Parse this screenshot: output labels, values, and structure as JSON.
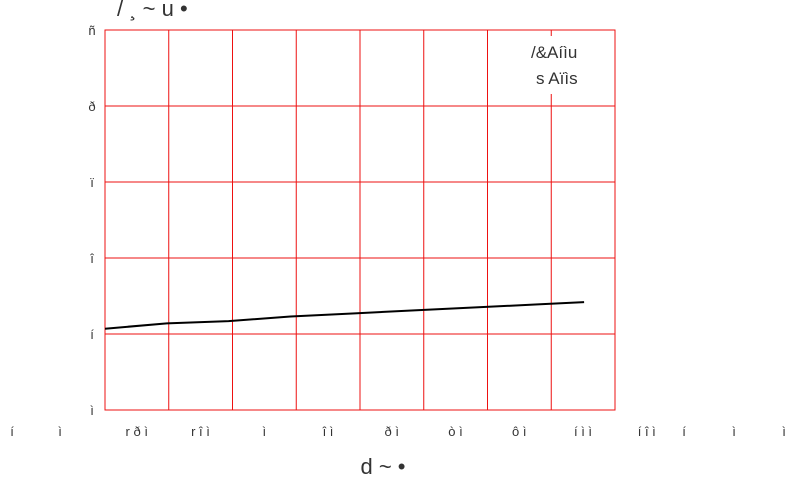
{
  "chart_data": {
    "type": "line",
    "ytitle": "/ ¸ ~ u  •",
    "xtitle": "d ~  •",
    "legend": [
      "/&Aíìu",
      "s Aïìs"
    ],
    "legend_position": "top-right",
    "grid": true,
    "colors": {
      "grid": "#ee1111",
      "line": "#000000",
      "text": "#333333"
    },
    "x_ticks": [
      "r ð ì",
      "r î ì",
      "ì",
      "î ì",
      "ð ì",
      "ò ì",
      "ô ì",
      "í ì ì",
      "í î ì"
    ],
    "x_edge_labels": [
      "í",
      "ì",
      "í",
      "ì",
      "ì"
    ],
    "y_ticks": [
      "ì",
      "í",
      "î",
      "ï",
      "ð",
      "ñ"
    ],
    "x": [
      -40,
      -20,
      0,
      20,
      40,
      60,
      80,
      100,
      115
    ],
    "xlim": [
      -40,
      125
    ],
    "ylim": [
      0,
      5
    ],
    "series": [
      {
        "values": [
          1.07,
          1.14,
          1.17,
          1.23,
          1.27,
          1.31,
          1.35,
          1.39,
          1.42
        ]
      }
    ]
  }
}
